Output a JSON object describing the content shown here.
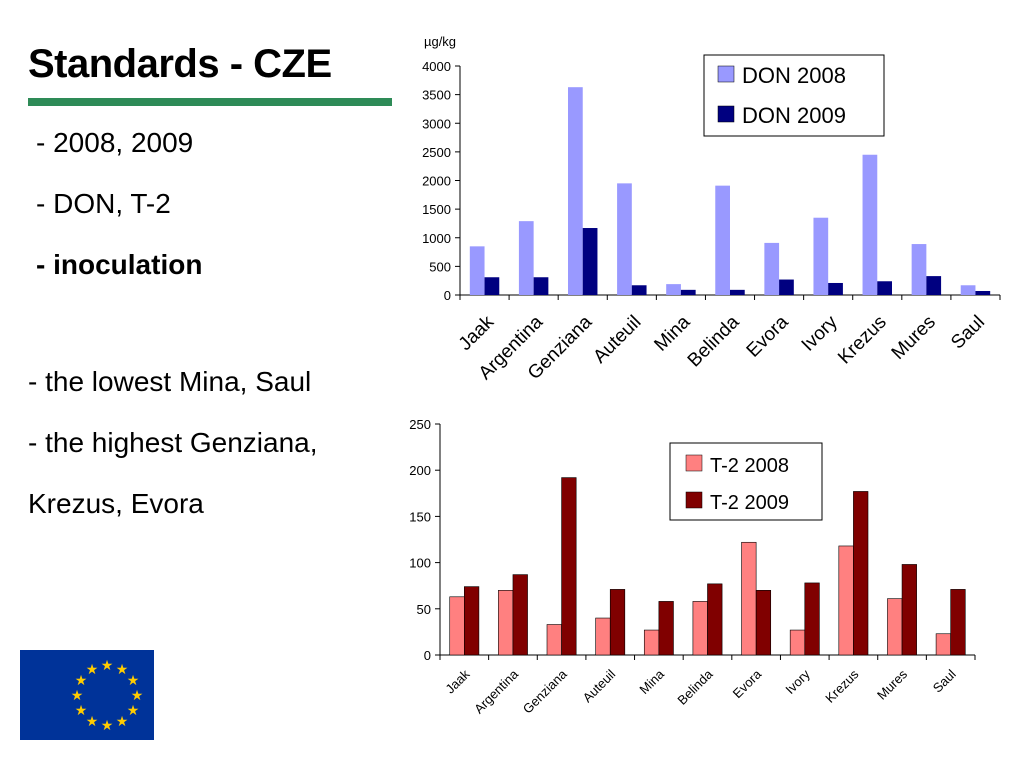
{
  "slide": {
    "title": "Standards - CZE",
    "bullets": [
      "- 2008, 2009",
      "- DON, T-2",
      "- inoculation"
    ],
    "notes": [
      "- the lowest Mina, Saul",
      "- the highest Genziana,",
      "Krezus, Evora"
    ],
    "colors": {
      "rule": "#2e8b57",
      "flag_blue": "#003399",
      "flag_star": "#ffcc00"
    }
  },
  "chart_data": [
    {
      "type": "bar",
      "ylabel": "µg/kg",
      "ylim": [
        0,
        4000
      ],
      "yticks": [
        0,
        500,
        1000,
        1500,
        2000,
        2500,
        3000,
        3500,
        4000
      ],
      "categories": [
        "Jaak",
        "Argentina",
        "Genziana",
        "Auteuil",
        "Mina",
        "Belinda",
        "Evora",
        "Ivory",
        "Krezus",
        "Mures",
        "Saul"
      ],
      "series": [
        {
          "name": "DON 2008",
          "color": "#9999ff",
          "values": [
            850,
            1290,
            3630,
            1950,
            190,
            1910,
            910,
            1350,
            2450,
            890,
            170
          ]
        },
        {
          "name": "DON 2009",
          "color": "#000080",
          "values": [
            310,
            310,
            1170,
            170,
            90,
            90,
            270,
            210,
            240,
            330,
            70
          ]
        }
      ],
      "legend": "top-right",
      "grid": false
    },
    {
      "type": "bar",
      "ylim": [
        0,
        250
      ],
      "yticks": [
        0,
        50,
        100,
        150,
        200,
        250
      ],
      "categories": [
        "Jaak",
        "Argentina",
        "Genziana",
        "Auteuil",
        "Mina",
        "Belinda",
        "Evora",
        "Ivory",
        "Krezus",
        "Mures",
        "Saul"
      ],
      "series": [
        {
          "name": "T-2 2008",
          "color": "#ff8080",
          "values": [
            63,
            70,
            33,
            40,
            27,
            58,
            122,
            27,
            118,
            61,
            23
          ]
        },
        {
          "name": "T-2 2009",
          "color": "#800000",
          "values": [
            74,
            87,
            192,
            71,
            58,
            77,
            70,
            78,
            177,
            98,
            71
          ]
        }
      ],
      "legend": "top-right",
      "grid": false
    }
  ]
}
